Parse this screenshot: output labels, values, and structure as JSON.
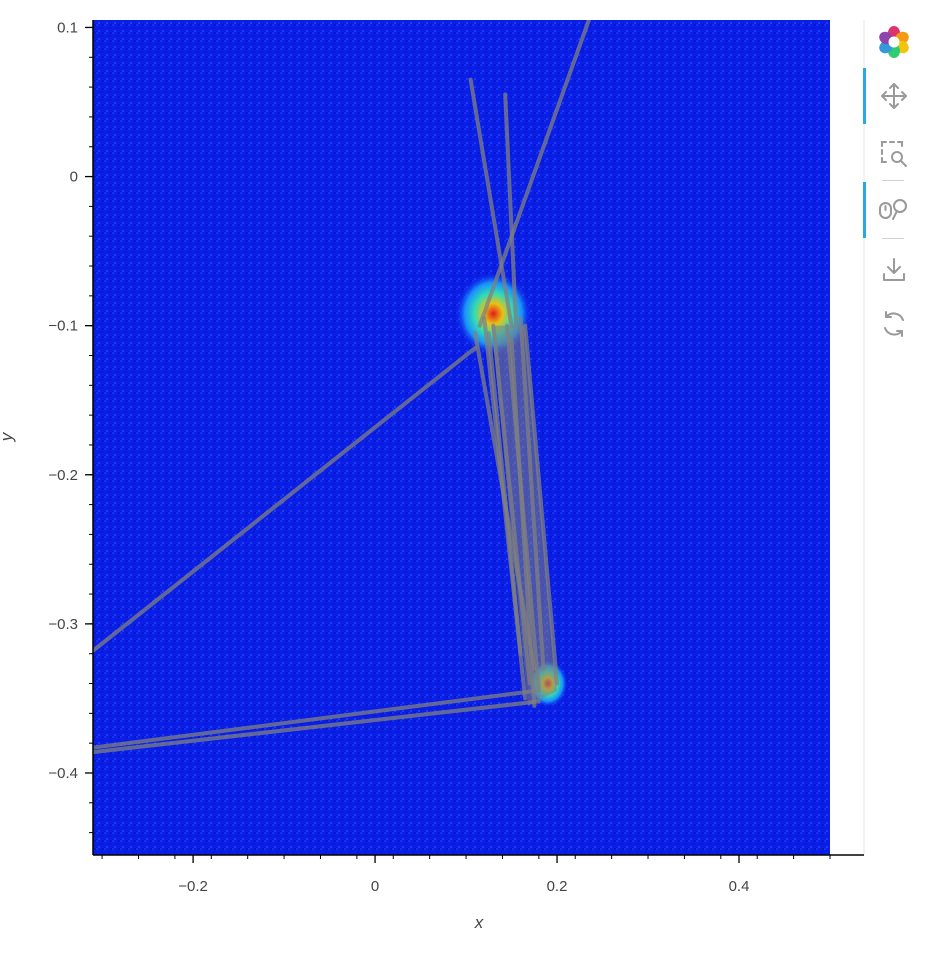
{
  "chart_data": {
    "type": "scatter",
    "xlabel": "x",
    "ylabel": "y",
    "xlim": [
      -0.31,
      0.5
    ],
    "ylim": [
      -0.455,
      0.105
    ],
    "x_ticks": [
      -0.2,
      0,
      0.2,
      0.4
    ],
    "x_tick_labels": [
      "−0.2",
      "0",
      "0.2",
      "0.4"
    ],
    "y_ticks": [
      0.1,
      0,
      -0.1,
      -0.2,
      -0.3,
      -0.4
    ],
    "y_tick_labels": [
      "0.1",
      "0",
      "−0.1",
      "−0.2",
      "−0.3",
      "−0.4"
    ],
    "background": {
      "type": "heatmap",
      "colormap": "jet",
      "base_color": "#0b1ee8"
    },
    "density_clusters": [
      {
        "x": 0.13,
        "y": -0.092,
        "rx": 0.042,
        "ry": 0.028
      },
      {
        "x": 0.19,
        "y": -0.34,
        "rx": 0.022,
        "ry": 0.016
      }
    ],
    "trajectory_segments": [
      {
        "from": [
          0.105,
          0.065
        ],
        "to": [
          0.15,
          -0.1
        ]
      },
      {
        "from": [
          0.143,
          0.055
        ],
        "to": [
          0.155,
          -0.1
        ]
      },
      {
        "from": [
          0.13,
          -0.1
        ],
        "to": [
          0.17,
          -0.34
        ]
      },
      {
        "from": [
          0.145,
          -0.1
        ],
        "to": [
          0.18,
          -0.345
        ]
      },
      {
        "from": [
          0.16,
          -0.095
        ],
        "to": [
          0.185,
          -0.33
        ]
      },
      {
        "from": [
          0.12,
          -0.095
        ],
        "to": [
          0.165,
          -0.35
        ]
      },
      {
        "from": [
          0.15,
          -0.11
        ],
        "to": [
          0.175,
          -0.355
        ]
      },
      {
        "from": [
          0.125,
          -0.105
        ],
        "to": [
          0.16,
          -0.32
        ]
      },
      {
        "from": [
          0.165,
          -0.1
        ],
        "to": [
          0.2,
          -0.34
        ]
      },
      {
        "from": [
          0.11,
          -0.115
        ],
        "to": [
          -0.31,
          -0.318
        ]
      },
      {
        "from": [
          0.115,
          -0.1
        ],
        "to": [
          0.235,
          0.105
        ]
      },
      {
        "from": [
          0.175,
          -0.345
        ],
        "to": [
          -0.31,
          -0.383
        ]
      },
      {
        "from": [
          0.18,
          -0.352
        ],
        "to": [
          -0.31,
          -0.386
        ]
      },
      {
        "from": [
          0.11,
          -0.105
        ],
        "to": [
          0.175,
          -0.33
        ]
      }
    ]
  },
  "toolbar": {
    "logo": "bokeh-logo-icon",
    "tools": [
      {
        "name": "pan-tool",
        "icon": "pan-icon",
        "active": true
      },
      {
        "name": "box-zoom-tool",
        "icon": "box-zoom-icon",
        "active": false
      },
      {
        "name": "wheel-zoom-tool",
        "icon": "wheel-zoom-icon",
        "active": true
      },
      {
        "name": "save-tool",
        "icon": "save-icon",
        "active": false
      },
      {
        "name": "reset-tool",
        "icon": "reset-icon",
        "active": false
      }
    ]
  }
}
